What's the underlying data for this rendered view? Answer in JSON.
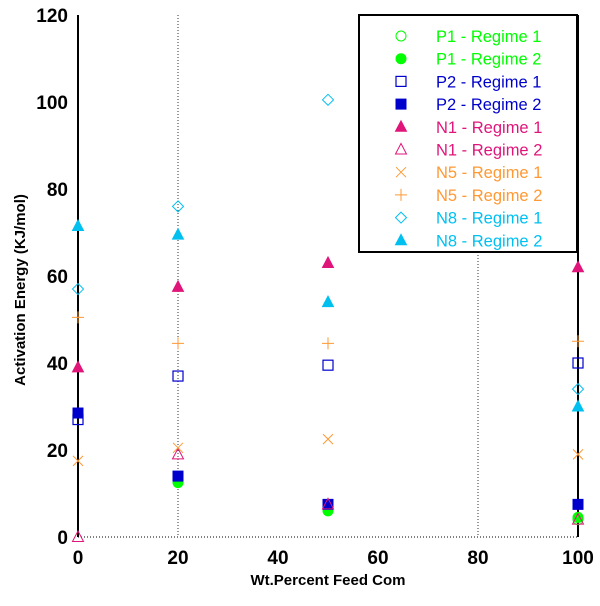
{
  "chart_data": {
    "type": "scatter",
    "title": "",
    "xlabel": "Wt.Percent Feed Com",
    "ylabel": "Activation Energy (KJ/mol)",
    "xlim": [
      0,
      100
    ],
    "ylim": [
      0,
      120
    ],
    "xticks": [
      0,
      20,
      40,
      60,
      80,
      100
    ],
    "yticks": [
      0,
      20,
      40,
      60,
      80,
      100,
      120
    ],
    "x_gridlines": [
      20,
      80
    ],
    "legend_position": "top-right",
    "series": [
      {
        "name": "P1 - Regime 1",
        "color": "#00ff00",
        "marker": "circle-open",
        "points": [
          [
            100,
            4
          ]
        ]
      },
      {
        "name": "P1 - Regime 2",
        "color": "#00ff00",
        "marker": "circle-filled",
        "points": [
          [
            20,
            12.5
          ],
          [
            50,
            6
          ],
          [
            100,
            4.5
          ]
        ]
      },
      {
        "name": "P2 - Regime 1",
        "color": "#0000cc",
        "marker": "square-open",
        "points": [
          [
            0,
            27
          ],
          [
            20,
            37
          ],
          [
            50,
            39.5
          ],
          [
            100,
            40
          ]
        ]
      },
      {
        "name": "P2 - Regime 2",
        "color": "#0000cc",
        "marker": "square-filled",
        "points": [
          [
            0,
            28.5
          ],
          [
            20,
            14
          ],
          [
            50,
            7.5
          ],
          [
            100,
            7.5
          ]
        ]
      },
      {
        "name": "N1 - Regime 1",
        "color": "#e0157a",
        "marker": "triangle-filled",
        "points": [
          [
            0,
            39
          ],
          [
            20,
            57.5
          ],
          [
            50,
            63
          ],
          [
            100,
            62
          ]
        ]
      },
      {
        "name": "N1 - Regime 2",
        "color": "#e0157a",
        "marker": "triangle-open",
        "points": [
          [
            0,
            0
          ],
          [
            20,
            19
          ],
          [
            50,
            7.5
          ],
          [
            100,
            4
          ]
        ]
      },
      {
        "name": "N5 - Regime 1",
        "color": "#ff9933",
        "marker": "x",
        "points": [
          [
            0,
            17.5
          ],
          [
            20,
            20.5
          ],
          [
            50,
            22.5
          ],
          [
            100,
            19
          ]
        ]
      },
      {
        "name": "N5 - Regime 2",
        "color": "#ff9933",
        "marker": "plus",
        "points": [
          [
            0,
            50.5
          ],
          [
            20,
            44.5
          ],
          [
            50,
            44.5
          ],
          [
            100,
            45
          ]
        ]
      },
      {
        "name": "N8 - Regime 1",
        "color": "#00c0f0",
        "marker": "diamond-open",
        "points": [
          [
            0,
            57
          ],
          [
            20,
            76
          ],
          [
            50,
            100.5
          ],
          [
            100,
            34
          ]
        ]
      },
      {
        "name": "N8 - Regime 2",
        "color": "#00c0f0",
        "marker": "triangle-filled",
        "points": [
          [
            0,
            71.5
          ],
          [
            20,
            69.5
          ],
          [
            50,
            54
          ],
          [
            100,
            30
          ]
        ]
      }
    ]
  }
}
